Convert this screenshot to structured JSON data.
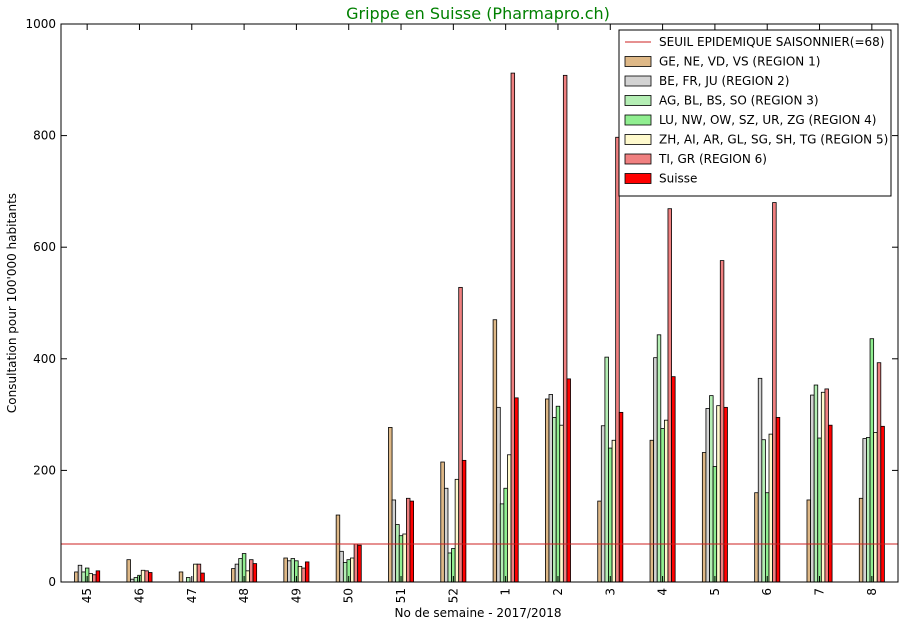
{
  "chart_data": {
    "type": "bar",
    "title": "Grippe en Suisse (Pharmapro.ch)",
    "xlabel": "No de semaine - 2017/2018",
    "ylabel": "Consultation pour 100'000 habitants",
    "ylim": [
      0,
      1000
    ],
    "yticks": [
      0,
      200,
      400,
      600,
      800,
      1000
    ],
    "grid": false,
    "legend_position": "top-right",
    "threshold": {
      "name": "SEUIL EPIDEMIQUE SAISONNIER(=68)",
      "value": 68,
      "color": "#cc2222"
    },
    "categories": [
      "45",
      "46",
      "47",
      "48",
      "49",
      "50",
      "51",
      "52",
      "1",
      "2",
      "3",
      "4",
      "5",
      "6",
      "7",
      "8"
    ],
    "series": [
      {
        "name": "GE, NE, VD, VS (REGION 1)",
        "color": "#deb887",
        "values": [
          18,
          40,
          18,
          24,
          43,
          120,
          277,
          215,
          470,
          328,
          145,
          254,
          232,
          160,
          147,
          150
        ]
      },
      {
        "name": "BE, FR, JU (REGION 2)",
        "color": "#d3d3d3",
        "values": [
          30,
          5,
          0,
          32,
          38,
          55,
          147,
          168,
          313,
          336,
          280,
          402,
          311,
          365,
          335,
          257
        ]
      },
      {
        "name": "AG, BL, BS, SO (REGION 3)",
        "color": "#b4eeb4",
        "values": [
          18,
          8,
          8,
          42,
          42,
          35,
          103,
          52,
          140,
          295,
          403,
          443,
          334,
          255,
          353,
          259
        ]
      },
      {
        "name": "LU, NW, OW, SZ, UR, ZG (REGION 4)",
        "color": "#90ee90",
        "values": [
          25,
          12,
          0,
          51,
          38,
          40,
          83,
          60,
          168,
          315,
          240,
          275,
          207,
          160,
          258,
          436
        ]
      },
      {
        "name": "ZH, AI, AR, GL, SG, SH, TG (REGION 5)",
        "color": "#fffacd",
        "values": [
          15,
          21,
          32,
          20,
          28,
          43,
          86,
          184,
          228,
          281,
          254,
          290,
          316,
          265,
          340,
          268
        ]
      },
      {
        "name": "TI, GR (REGION 6)",
        "color": "#f08080",
        "values": [
          13,
          20,
          32,
          40,
          25,
          68,
          150,
          528,
          912,
          908,
          797,
          669,
          576,
          680,
          346,
          393
        ]
      },
      {
        "name": "Suisse",
        "color": "#ff0000",
        "values": [
          20,
          17,
          16,
          33,
          36,
          66,
          145,
          218,
          330,
          364,
          304,
          368,
          313,
          295,
          281,
          279
        ]
      }
    ]
  }
}
